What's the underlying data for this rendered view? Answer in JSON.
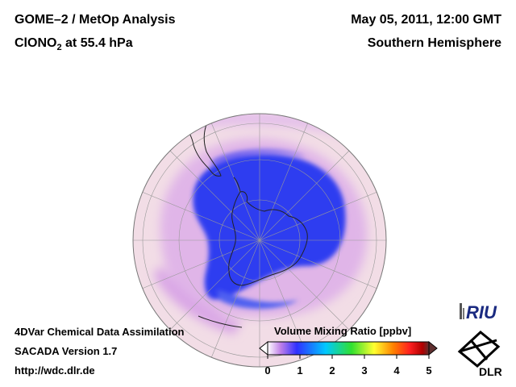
{
  "header": {
    "title_line1": "GOME–2 / MetOp Analysis",
    "species": "ClONO",
    "species_sub": "2",
    "level": " at 55.4 hPa",
    "date": "May 05, 2011, 12:00 GMT",
    "hemisphere": "Southern Hemisphere"
  },
  "footer": {
    "method": "4DVar Chemical Data Assimilation",
    "version": "SACADA Version 1.7",
    "url": "http://wdc.dlr.de"
  },
  "colorbar": {
    "title": "Volume Mixing Ratio [ppbv]",
    "ticks": [
      "0",
      "1",
      "2",
      "3",
      "4",
      "5"
    ],
    "range": [
      0,
      5
    ],
    "colors": [
      "#ffffff",
      "#c080e8",
      "#3030ff",
      "#00c8ff",
      "#30e030",
      "#ffff30",
      "#ff8000",
      "#ff2020",
      "#b00000",
      "#603030"
    ]
  },
  "logos": {
    "riu": "RIU",
    "dlr": "DLR"
  },
  "map": {
    "projection": "orthographic south polar",
    "background_color": "#f2dde6",
    "low_color": "#2e3cf0",
    "mid_color": "#d9a6e6"
  }
}
